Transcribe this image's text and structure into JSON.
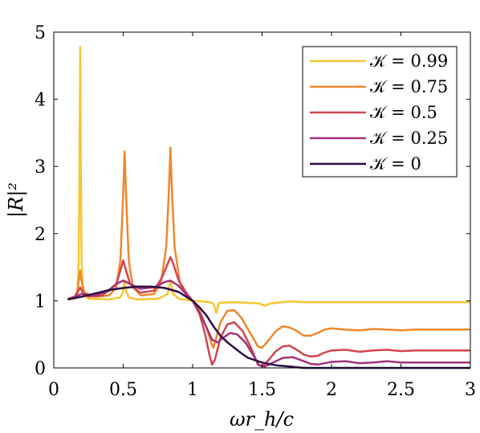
{
  "chart_data": {
    "type": "line",
    "title": "",
    "xlabel": "ωr_h/c",
    "ylabel": "|R|²",
    "xlim": [
      0,
      3
    ],
    "ylim": [
      0,
      5
    ],
    "xticks": [
      0,
      0.5,
      1,
      1.5,
      2,
      2.5,
      3
    ],
    "xtick_labels": [
      "0",
      "0.5",
      "1",
      "1.5",
      "2",
      "2.5",
      "3"
    ],
    "yticks": [
      0,
      1,
      2,
      3,
      4,
      5
    ],
    "ytick_labels": [
      "0",
      "1",
      "2",
      "3",
      "4",
      "5"
    ],
    "grid": false,
    "legend_position": "top-right",
    "series": [
      {
        "name": "𝒦 = 0.99",
        "color": "#f7c531",
        "points": [
          [
            0.1,
            1.02
          ],
          [
            0.15,
            1.03
          ],
          [
            0.17,
            1.1
          ],
          [
            0.18,
            1.6
          ],
          [
            0.185,
            3.0
          ],
          [
            0.19,
            4.78
          ],
          [
            0.195,
            3.0
          ],
          [
            0.2,
            1.6
          ],
          [
            0.21,
            1.1
          ],
          [
            0.25,
            1.03
          ],
          [
            0.4,
            1.02
          ],
          [
            0.48,
            1.05
          ],
          [
            0.5,
            1.15
          ],
          [
            0.51,
            1.3
          ],
          [
            0.52,
            1.15
          ],
          [
            0.54,
            1.05
          ],
          [
            0.6,
            1.02
          ],
          [
            0.75,
            1.03
          ],
          [
            0.82,
            1.1
          ],
          [
            0.84,
            1.3
          ],
          [
            0.86,
            1.1
          ],
          [
            0.9,
            1.03
          ],
          [
            1.0,
            1.0
          ],
          [
            1.12,
            0.98
          ],
          [
            1.15,
            0.96
          ],
          [
            1.17,
            0.82
          ],
          [
            1.19,
            0.97
          ],
          [
            1.3,
            0.98
          ],
          [
            1.48,
            0.96
          ],
          [
            1.52,
            0.93
          ],
          [
            1.56,
            0.96
          ],
          [
            1.7,
            0.99
          ],
          [
            1.8,
            0.98
          ],
          [
            2.0,
            0.98
          ],
          [
            2.5,
            0.98
          ],
          [
            3.0,
            0.98
          ]
        ]
      },
      {
        "name": "𝒦 = 0.75",
        "color": "#f0862a",
        "points": [
          [
            0.1,
            1.03
          ],
          [
            0.15,
            1.06
          ],
          [
            0.17,
            1.15
          ],
          [
            0.18,
            1.3
          ],
          [
            0.19,
            1.45
          ],
          [
            0.2,
            1.3
          ],
          [
            0.22,
            1.12
          ],
          [
            0.3,
            1.06
          ],
          [
            0.4,
            1.08
          ],
          [
            0.45,
            1.2
          ],
          [
            0.48,
            1.6
          ],
          [
            0.5,
            2.6
          ],
          [
            0.51,
            3.22
          ],
          [
            0.52,
            2.6
          ],
          [
            0.54,
            1.6
          ],
          [
            0.57,
            1.2
          ],
          [
            0.63,
            1.08
          ],
          [
            0.72,
            1.1
          ],
          [
            0.77,
            1.25
          ],
          [
            0.81,
            1.8
          ],
          [
            0.83,
            2.7
          ],
          [
            0.84,
            3.28
          ],
          [
            0.85,
            2.7
          ],
          [
            0.87,
            1.8
          ],
          [
            0.91,
            1.25
          ],
          [
            0.96,
            1.08
          ],
          [
            1.0,
            1.0
          ],
          [
            1.05,
            0.85
          ],
          [
            1.1,
            0.6
          ],
          [
            1.13,
            0.4
          ],
          [
            1.15,
            0.3
          ],
          [
            1.17,
            0.45
          ],
          [
            1.2,
            0.68
          ],
          [
            1.25,
            0.85
          ],
          [
            1.3,
            0.86
          ],
          [
            1.35,
            0.75
          ],
          [
            1.42,
            0.5
          ],
          [
            1.47,
            0.32
          ],
          [
            1.5,
            0.3
          ],
          [
            1.55,
            0.42
          ],
          [
            1.6,
            0.55
          ],
          [
            1.65,
            0.62
          ],
          [
            1.7,
            0.6
          ],
          [
            1.75,
            0.55
          ],
          [
            1.8,
            0.48
          ],
          [
            1.85,
            0.48
          ],
          [
            1.9,
            0.52
          ],
          [
            1.95,
            0.57
          ],
          [
            2.0,
            0.59
          ],
          [
            2.1,
            0.57
          ],
          [
            2.2,
            0.56
          ],
          [
            2.3,
            0.58
          ],
          [
            2.4,
            0.57
          ],
          [
            2.5,
            0.56
          ],
          [
            2.6,
            0.57
          ],
          [
            2.8,
            0.57
          ],
          [
            3.0,
            0.57
          ]
        ]
      },
      {
        "name": "𝒦 = 0.5",
        "color": "#d1454f",
        "points": [
          [
            0.1,
            1.02
          ],
          [
            0.15,
            1.06
          ],
          [
            0.17,
            1.12
          ],
          [
            0.19,
            1.2
          ],
          [
            0.21,
            1.12
          ],
          [
            0.25,
            1.06
          ],
          [
            0.35,
            1.08
          ],
          [
            0.45,
            1.25
          ],
          [
            0.48,
            1.45
          ],
          [
            0.5,
            1.6
          ],
          [
            0.52,
            1.45
          ],
          [
            0.55,
            1.25
          ],
          [
            0.62,
            1.12
          ],
          [
            0.72,
            1.15
          ],
          [
            0.78,
            1.35
          ],
          [
            0.82,
            1.55
          ],
          [
            0.84,
            1.65
          ],
          [
            0.86,
            1.55
          ],
          [
            0.9,
            1.3
          ],
          [
            0.96,
            1.1
          ],
          [
            1.0,
            1.0
          ],
          [
            1.05,
            0.8
          ],
          [
            1.09,
            0.5
          ],
          [
            1.12,
            0.2
          ],
          [
            1.14,
            0.05
          ],
          [
            1.16,
            0.12
          ],
          [
            1.2,
            0.45
          ],
          [
            1.25,
            0.65
          ],
          [
            1.3,
            0.68
          ],
          [
            1.36,
            0.55
          ],
          [
            1.42,
            0.3
          ],
          [
            1.47,
            0.05
          ],
          [
            1.5,
            0.02
          ],
          [
            1.54,
            0.1
          ],
          [
            1.6,
            0.25
          ],
          [
            1.65,
            0.32
          ],
          [
            1.7,
            0.33
          ],
          [
            1.75,
            0.27
          ],
          [
            1.8,
            0.2
          ],
          [
            1.85,
            0.17
          ],
          [
            1.9,
            0.18
          ],
          [
            1.95,
            0.23
          ],
          [
            2.0,
            0.26
          ],
          [
            2.1,
            0.27
          ],
          [
            2.2,
            0.24
          ],
          [
            2.3,
            0.26
          ],
          [
            2.4,
            0.27
          ],
          [
            2.5,
            0.25
          ],
          [
            2.6,
            0.26
          ],
          [
            2.8,
            0.26
          ],
          [
            3.0,
            0.26
          ]
        ]
      },
      {
        "name": "𝒦 = 0.25",
        "color": "#a2327a",
        "points": [
          [
            0.1,
            1.02
          ],
          [
            0.2,
            1.1
          ],
          [
            0.3,
            1.08
          ],
          [
            0.4,
            1.15
          ],
          [
            0.45,
            1.25
          ],
          [
            0.5,
            1.3
          ],
          [
            0.55,
            1.25
          ],
          [
            0.62,
            1.18
          ],
          [
            0.72,
            1.2
          ],
          [
            0.8,
            1.28
          ],
          [
            0.84,
            1.3
          ],
          [
            0.9,
            1.22
          ],
          [
            0.96,
            1.08
          ],
          [
            1.0,
            1.0
          ],
          [
            1.05,
            0.82
          ],
          [
            1.1,
            0.6
          ],
          [
            1.14,
            0.42
          ],
          [
            1.18,
            0.38
          ],
          [
            1.22,
            0.45
          ],
          [
            1.27,
            0.52
          ],
          [
            1.32,
            0.5
          ],
          [
            1.38,
            0.38
          ],
          [
            1.44,
            0.18
          ],
          [
            1.48,
            0.04
          ],
          [
            1.52,
            0.02
          ],
          [
            1.58,
            0.08
          ],
          [
            1.65,
            0.15
          ],
          [
            1.72,
            0.16
          ],
          [
            1.8,
            0.1
          ],
          [
            1.85,
            0.06
          ],
          [
            1.9,
            0.05
          ],
          [
            2.0,
            0.09
          ],
          [
            2.1,
            0.1
          ],
          [
            2.2,
            0.07
          ],
          [
            2.3,
            0.08
          ],
          [
            2.4,
            0.1
          ],
          [
            2.5,
            0.08
          ],
          [
            2.7,
            0.08
          ],
          [
            3.0,
            0.08
          ]
        ]
      },
      {
        "name": "𝒦 = 0",
        "color": "#2c0f45",
        "points": [
          [
            0.1,
            1.02
          ],
          [
            0.2,
            1.06
          ],
          [
            0.3,
            1.11
          ],
          [
            0.4,
            1.16
          ],
          [
            0.5,
            1.19
          ],
          [
            0.6,
            1.21
          ],
          [
            0.7,
            1.21
          ],
          [
            0.8,
            1.19
          ],
          [
            0.9,
            1.13
          ],
          [
            1.0,
            1.0
          ],
          [
            1.05,
            0.9
          ],
          [
            1.1,
            0.78
          ],
          [
            1.15,
            0.62
          ],
          [
            1.2,
            0.48
          ],
          [
            1.25,
            0.38
          ],
          [
            1.3,
            0.3
          ],
          [
            1.35,
            0.22
          ],
          [
            1.4,
            0.15
          ],
          [
            1.5,
            0.08
          ],
          [
            1.6,
            0.04
          ],
          [
            1.7,
            0.02
          ],
          [
            1.8,
            0.0
          ],
          [
            2.0,
            0.0
          ],
          [
            2.5,
            0.0
          ],
          [
            3.0,
            0.0
          ]
        ]
      }
    ]
  }
}
